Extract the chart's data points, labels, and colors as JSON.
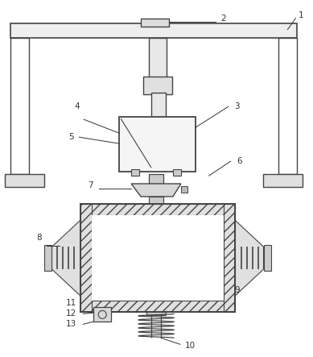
{
  "background_color": "#ffffff",
  "line_color": "#444444",
  "label_color": "#333333",
  "fig_w": 3.89,
  "fig_h": 4.43,
  "dpi": 100
}
